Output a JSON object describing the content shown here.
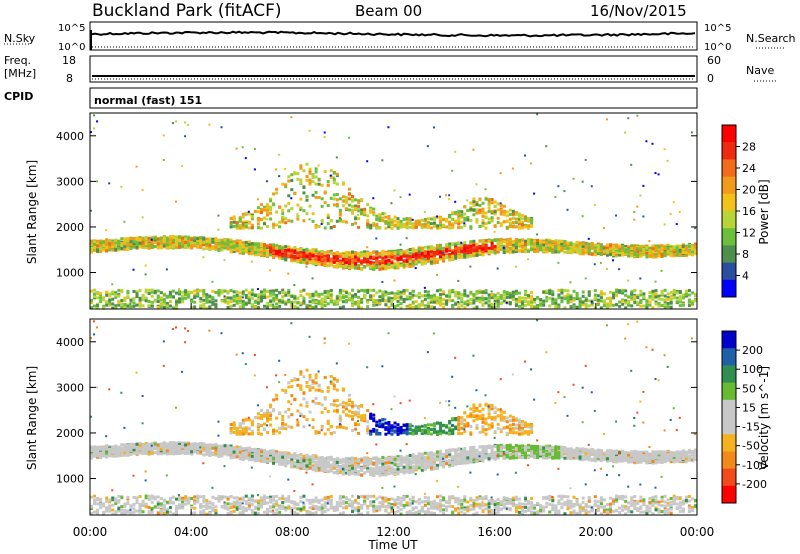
{
  "header": {
    "title": "Buckland Park (fitACF)",
    "beam": "Beam 00",
    "date": "16/Nov/2015"
  },
  "strip_panels": {
    "nsky": {
      "label": "N.Sky",
      "tick_top": "10^5",
      "tick_bottom": "10^0",
      "right_label": "N.Search",
      "right_tick_top": "10^5",
      "right_tick_bottom": "10^0"
    },
    "freq": {
      "label_line1": "Freq.",
      "label_line2": "[MHz]",
      "tick_top": "18",
      "tick_bottom": "8",
      "right_label": "Nave",
      "right_tick_top": "60",
      "right_tick_bottom": "0"
    },
    "cpid": {
      "label": "CPID",
      "mode_text": "normal (fast) 151"
    }
  },
  "colors": {
    "power_scale": [
      "#0000ff",
      "#2b4e9e",
      "#4e8f4e",
      "#6abf3c",
      "#b8d438",
      "#f2c21a",
      "#f29b1a",
      "#f26a1a",
      "#ee2a10",
      "#ff0000"
    ],
    "velocity_scale": [
      "#ff0000",
      "#f24a1a",
      "#f28a1a",
      "#f5b21e",
      "#c8c8c8",
      "#c8c8c8",
      "#66bb33",
      "#2e8f4e",
      "#1f5fa8",
      "#0000cc"
    ]
  },
  "chart_data": [
    {
      "type": "heatmap",
      "name": "power-panel",
      "ylabel": "Slant Range [km]",
      "yticks": [
        "1000",
        "2000",
        "3000",
        "4000"
      ],
      "ylim": [
        200,
        4500
      ],
      "xlim": [
        0,
        24
      ],
      "colorbar_label": "Power [dB]",
      "colorbar_ticks": [
        "4",
        "8",
        "12",
        "16",
        "20",
        "24",
        "28"
      ],
      "colorbar_range": [
        0,
        30
      ],
      "bands": [
        {
          "range_km": 1600,
          "value_dB": 12,
          "from_h": 0,
          "to_h": 24
        },
        {
          "range_km": 1250,
          "value_dB": 26,
          "from_h": 8,
          "to_h": 15
        },
        {
          "range_km": 2500,
          "value_dB": 14,
          "from_h": 6,
          "to_h": 17
        },
        {
          "range_km": 400,
          "value_dB": 8,
          "from_h": 0,
          "to_h": 24
        }
      ]
    },
    {
      "type": "heatmap",
      "name": "velocity-panel",
      "ylabel": "Slant Range [km]",
      "yticks": [
        "1000",
        "2000",
        "3000",
        "4000"
      ],
      "ylim": [
        200,
        4500
      ],
      "xlim": [
        0,
        24
      ],
      "xticks": [
        "00:00",
        "04:00",
        "08:00",
        "12:00",
        "16:00",
        "20:00",
        "00:00"
      ],
      "xlabel": "Time UT",
      "colorbar_label": "Velocity [m s^-1]",
      "colorbar_ticks": [
        "200",
        "100",
        "50",
        "15",
        "-15",
        "-50",
        "-100",
        "-200"
      ],
      "colorbar_range": [
        -250,
        250
      ]
    }
  ]
}
